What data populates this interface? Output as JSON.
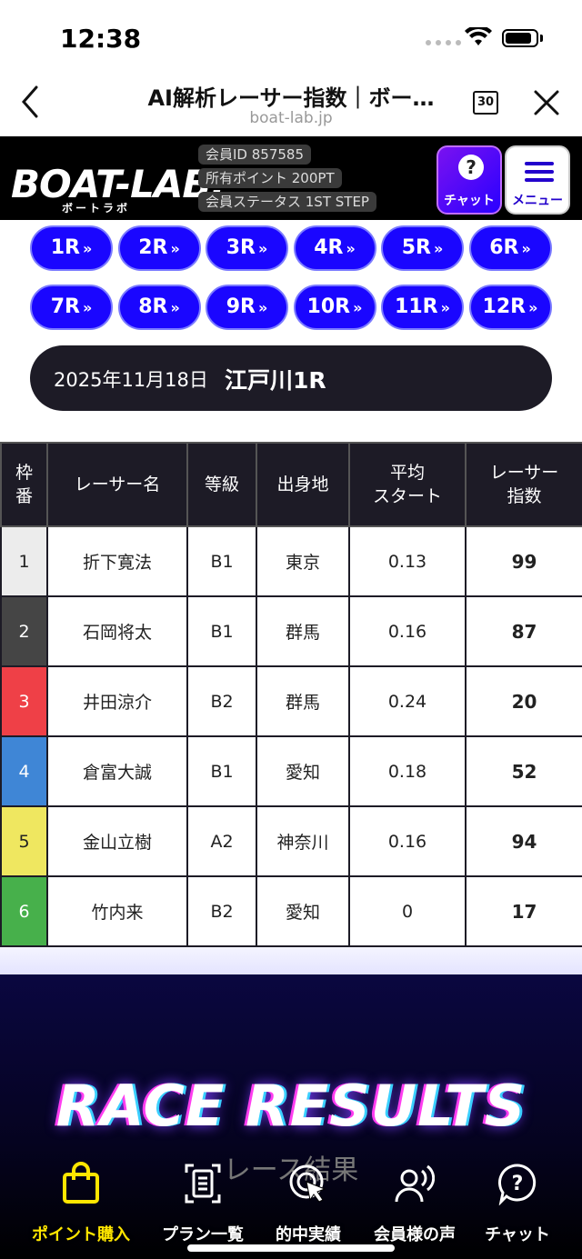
{
  "status_bar": {
    "time": "12:38"
  },
  "browser": {
    "title": "AI解析レーサー指数｜ボー…",
    "url": "boat-lab.jp",
    "tab_count": "30"
  },
  "site_header": {
    "logo": "BOAT-LAB.",
    "logo_sub": "ボートラボ",
    "member_id": "会員ID 857585",
    "points": "所有ポイント 200PT",
    "status": "会員ステータス 1ST STEP",
    "chat_label": "チャット",
    "menu_label": "メニュー"
  },
  "race_buttons": [
    "1R",
    "2R",
    "3R",
    "4R",
    "5R",
    "6R",
    "7R",
    "8R",
    "9R",
    "10R",
    "11R",
    "12R"
  ],
  "race_info": {
    "date": "2025年11月18日",
    "venue_race": "江戸川1R"
  },
  "table": {
    "headers": {
      "frame": [
        "枠",
        "番"
      ],
      "name": "レーサー名",
      "class": "等級",
      "origin": "出身地",
      "avg_start": [
        "平均",
        "スタート"
      ],
      "index": [
        "レーサー",
        "指数"
      ]
    },
    "rows": [
      {
        "frame": "1",
        "name": "折下寛法",
        "class": "B1",
        "origin": "東京",
        "avg_start": "0.13",
        "index": "99"
      },
      {
        "frame": "2",
        "name": "石岡将太",
        "class": "B1",
        "origin": "群馬",
        "avg_start": "0.16",
        "index": "87"
      },
      {
        "frame": "3",
        "name": "井田涼介",
        "class": "B2",
        "origin": "群馬",
        "avg_start": "0.24",
        "index": "20"
      },
      {
        "frame": "4",
        "name": "倉富大誠",
        "class": "B1",
        "origin": "愛知",
        "avg_start": "0.18",
        "index": "52"
      },
      {
        "frame": "5",
        "name": "金山立樹",
        "class": "A2",
        "origin": "神奈川",
        "avg_start": "0.16",
        "index": "94"
      },
      {
        "frame": "6",
        "name": "竹内来",
        "class": "B2",
        "origin": "愛知",
        "avg_start": "0",
        "index": "17"
      }
    ],
    "frame_colors": [
      "#ececec",
      "#454545",
      "#ef4047",
      "#3f86d6",
      "#efe760",
      "#47b04b"
    ],
    "frame_text_colors": [
      "#222",
      "#fff",
      "#fff",
      "#fff",
      "#222",
      "#fff"
    ]
  },
  "results_banner": {
    "title": "RACE RESULTS",
    "subtitle": "レース結果"
  },
  "bottom_nav": {
    "items": [
      {
        "label": "ポイント購入",
        "icon": "shopping-bag-icon"
      },
      {
        "label": "プラン一覧",
        "icon": "document-list-icon"
      },
      {
        "label": "的中実績",
        "icon": "target-cursor-icon"
      },
      {
        "label": "会員様の声",
        "icon": "user-voice-icon"
      },
      {
        "label": "チャット",
        "icon": "help-chat-icon"
      }
    ]
  },
  "colors": {
    "race_button": "#1a06ff",
    "dark": "#1d1b26",
    "active_nav": "#ffe600"
  }
}
